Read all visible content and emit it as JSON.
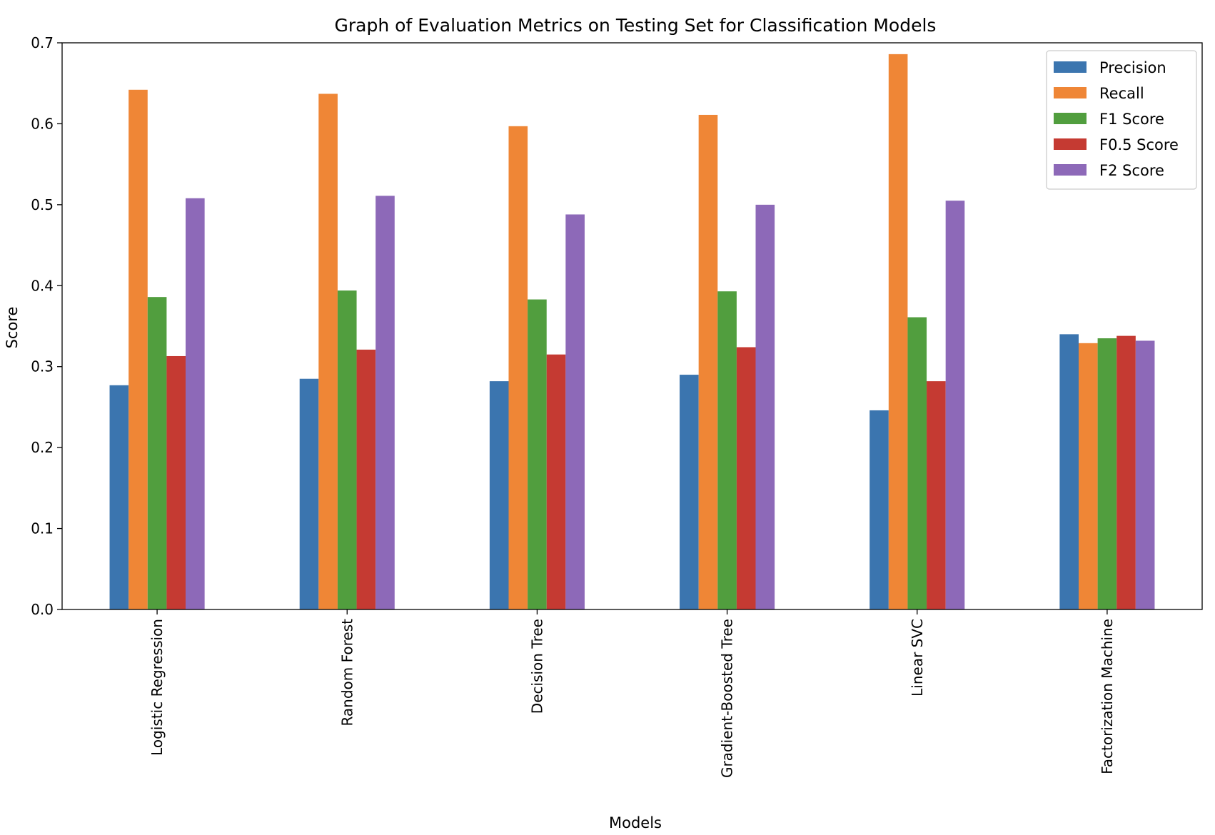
{
  "chart_data": {
    "type": "bar",
    "title": "Graph of Evaluation Metrics on Testing Set for Classification Models",
    "xlabel": "Models",
    "ylabel": "Score",
    "ylim": [
      0,
      0.7
    ],
    "yticks": [
      0.0,
      0.1,
      0.2,
      0.3,
      0.4,
      0.5,
      0.6,
      0.7
    ],
    "ytick_labels": [
      "0.0",
      "0.1",
      "0.2",
      "0.3",
      "0.4",
      "0.5",
      "0.6",
      "0.7"
    ],
    "grid": false,
    "legend_position": "top-right",
    "categories": [
      "Logistic Regression",
      "Random Forest",
      "Decision Tree",
      "Gradient-Boosted Tree",
      "Linear SVC",
      "Factorization Machine"
    ],
    "series": [
      {
        "name": "Precision",
        "color": "#3b75af",
        "values": [
          0.277,
          0.285,
          0.282,
          0.29,
          0.246,
          0.34
        ]
      },
      {
        "name": "Recall",
        "color": "#ef8636",
        "values": [
          0.642,
          0.637,
          0.597,
          0.611,
          0.686,
          0.329
        ]
      },
      {
        "name": "F1 Score",
        "color": "#519e3e",
        "values": [
          0.386,
          0.394,
          0.383,
          0.393,
          0.361,
          0.335
        ]
      },
      {
        "name": "F0.5 Score",
        "color": "#c53a32",
        "values": [
          0.313,
          0.321,
          0.315,
          0.324,
          0.282,
          0.338
        ]
      },
      {
        "name": "F2 Score",
        "color": "#8d69b8",
        "values": [
          0.508,
          0.511,
          0.488,
          0.5,
          0.505,
          0.332
        ]
      }
    ]
  }
}
